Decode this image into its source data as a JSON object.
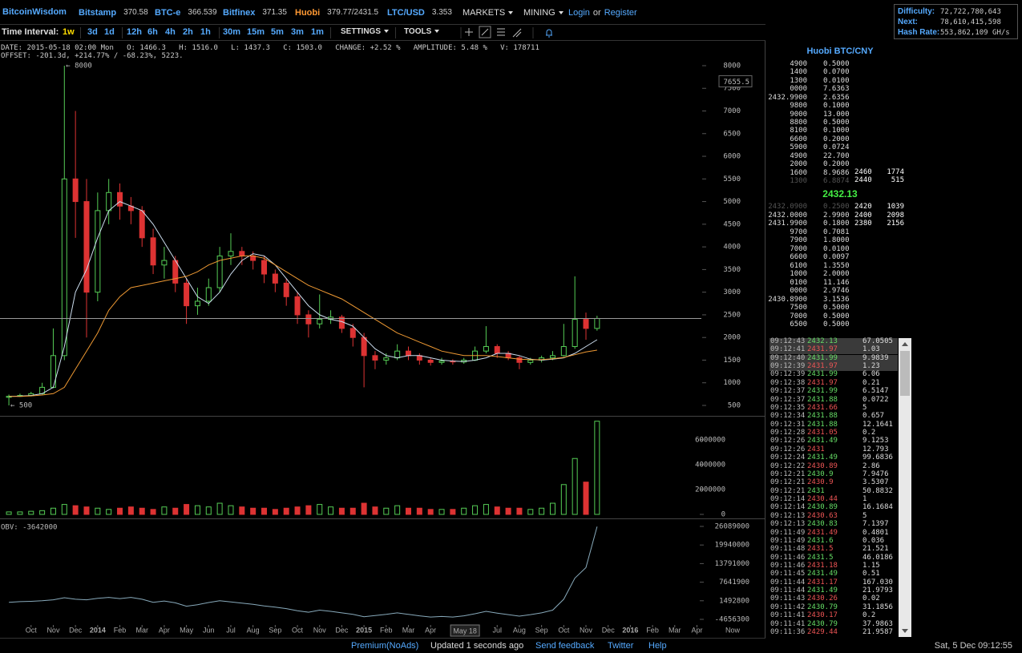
{
  "header": {
    "brand": "BitcoinWisdom",
    "tickers": [
      {
        "name": "Bitstamp",
        "price": "370.58",
        "color": "#5af"
      },
      {
        "name": "BTC-e",
        "price": "366.539",
        "color": "#5af"
      },
      {
        "name": "Bitfinex",
        "price": "371.35",
        "color": "#5af"
      },
      {
        "name": "Huobi",
        "price": "379.77/2431.5",
        "color": "#f93"
      },
      {
        "name": "LTC/USD",
        "price": "3.353",
        "color": "#5af"
      }
    ],
    "menus": [
      "MARKETS",
      "MINING"
    ],
    "login": "Login",
    "or": "or",
    "register": "Register"
  },
  "network": {
    "difficulty_label": "Difficulty:",
    "difficulty": "72,722,780,643",
    "next_label": "Next:",
    "next": "78,610,415,598",
    "hashrate_label": "Hash Rate:",
    "hashrate": "553,862,109 GH/s"
  },
  "toolbar": {
    "label": "Time Interval:",
    "intervals": [
      "1w",
      "3d",
      "1d",
      "12h",
      "6h",
      "4h",
      "2h",
      "1h",
      "30m",
      "15m",
      "5m",
      "3m",
      "1m"
    ],
    "active": 0,
    "settings": "SETTINGS",
    "tools": "TOOLS"
  },
  "info": {
    "line1": "DATE: 2015-05-18 02:00 Mon   O: 1466.3   H: 1516.0   L: 1437.3   C: 1503.0   CHANGE: +2.52 %   AMPLITUDE: 5.48 %   V: 178711",
    "line2": "OFFSET: -201.3d, +214.77% / -68.23%, 5223."
  },
  "chart_data": [
    {
      "type": "candlestick",
      "up_color": "#5c5",
      "down_color": "#d33",
      "x": [
        -1,
        -0.5,
        0,
        0.5,
        1,
        1.5,
        2,
        2.5,
        3,
        3.5,
        4,
        4.5,
        5,
        5.5,
        6,
        6.5,
        7,
        7.5,
        8,
        8.5,
        9,
        9.5,
        10,
        10.5,
        11,
        11.5,
        12,
        12.5,
        13,
        13.5,
        14,
        14.5,
        15,
        15.5,
        16,
        16.5,
        17,
        17.5,
        18,
        18.5,
        19,
        19.5,
        20,
        20.5,
        21,
        21.5,
        22,
        22.5,
        23,
        23.5,
        24,
        24.5,
        25,
        25.5
      ],
      "open": [
        680,
        700,
        720,
        760,
        900,
        1600,
        5500,
        5000,
        3000,
        4800,
        5200,
        4900,
        4800,
        4200,
        3600,
        3700,
        3200,
        2700,
        2800,
        3100,
        3800,
        3900,
        3800,
        3700,
        3400,
        3200,
        2900,
        2500,
        2300,
        2400,
        2450,
        2200,
        2000,
        1600,
        1500,
        1550,
        1700,
        1600,
        1500,
        1450,
        1480,
        1460,
        1500,
        1700,
        1800,
        1650,
        1550,
        1450,
        1500,
        1550,
        1600,
        1800,
        2400,
        2200
      ],
      "high": [
        740,
        760,
        800,
        1000,
        2200,
        8000,
        7000,
        5500,
        5200,
        5500,
        5400,
        5100,
        4900,
        4400,
        4000,
        3800,
        3300,
        3100,
        3300,
        4000,
        4300,
        4000,
        3900,
        3800,
        3500,
        3300,
        3000,
        2600,
        2950,
        2600,
        2500,
        2300,
        2100,
        1700,
        1650,
        1850,
        1800,
        1650,
        1550,
        1550,
        1520,
        1550,
        1800,
        2250,
        1850,
        1700,
        1600,
        1550,
        1600,
        1700,
        2300,
        3350,
        2550,
        2480
      ],
      "low": [
        500,
        690,
        700,
        740,
        880,
        1500,
        4200,
        2000,
        2800,
        4500,
        4600,
        4500,
        4000,
        3400,
        3300,
        3000,
        2300,
        2500,
        2700,
        3000,
        3600,
        3600,
        3500,
        3200,
        3000,
        2700,
        2300,
        2000,
        2200,
        2300,
        2100,
        1800,
        900,
        1300,
        1400,
        1500,
        1500,
        1400,
        1380,
        1400,
        1400,
        1420,
        1480,
        1650,
        1550,
        1500,
        1300,
        1400,
        1450,
        1500,
        1580,
        1750,
        1950,
        2150
      ],
      "close": [
        700,
        720,
        760,
        900,
        1600,
        5500,
        5000,
        3000,
        4800,
        5200,
        4900,
        4800,
        4200,
        3600,
        3700,
        3200,
        2700,
        2800,
        3100,
        3800,
        3900,
        3800,
        3700,
        3400,
        3200,
        2900,
        2500,
        2300,
        2400,
        2450,
        2200,
        2000,
        1600,
        1500,
        1550,
        1700,
        1600,
        1500,
        1450,
        1480,
        1460,
        1500,
        1700,
        1800,
        1650,
        1550,
        1450,
        1500,
        1550,
        1600,
        1800,
        2400,
        2200,
        2420
      ],
      "lines": [
        {
          "color": "#cde",
          "values": [
            700,
            705,
            720,
            760,
            900,
            1800,
            3000,
            3500,
            4200,
            4800,
            5000,
            4900,
            4800,
            4500,
            4100,
            3700,
            3300,
            2900,
            2750,
            3000,
            3400,
            3700,
            3850,
            3800,
            3600,
            3300,
            3000,
            2700,
            2500,
            2400,
            2350,
            2250,
            2000,
            1750,
            1600,
            1550,
            1600,
            1600,
            1550,
            1500,
            1480,
            1470,
            1500,
            1550,
            1650,
            1650,
            1600,
            1520,
            1500,
            1520,
            1550,
            1650,
            1800,
            1950
          ]
        },
        {
          "color": "#e93",
          "values": [
            700,
            700,
            710,
            730,
            760,
            900,
            1300,
            1700,
            2100,
            2600,
            2900,
            3100,
            3150,
            3200,
            3250,
            3300,
            3350,
            3450,
            3600,
            3700,
            3750,
            3800,
            3800,
            3750,
            3600,
            3450,
            3300,
            3150,
            3050,
            2950,
            2850,
            2700,
            2550,
            2400,
            2250,
            2100,
            2000,
            1900,
            1800,
            1700,
            1650,
            1600,
            1600,
            1600,
            1580,
            1550,
            1520,
            1510,
            1510,
            1530,
            1560,
            1620,
            1680,
            1720
          ]
        }
      ],
      "xlim": [
        -1.4,
        30.2
      ],
      "xticks": [
        {
          "value": 0,
          "label": "Oct"
        },
        {
          "value": 1,
          "label": "Nov"
        },
        {
          "value": 2,
          "label": "Dec"
        },
        {
          "value": 3,
          "label": "2014"
        },
        {
          "value": 4,
          "label": "Feb"
        },
        {
          "value": 5,
          "label": "Mar"
        },
        {
          "value": 6,
          "label": "Apr"
        },
        {
          "value": 7,
          "label": "May"
        },
        {
          "value": 8,
          "label": "Jun"
        },
        {
          "value": 9,
          "label": "Jul"
        },
        {
          "value": 10,
          "label": "Aug"
        },
        {
          "value": 11,
          "label": "Sep"
        },
        {
          "value": 12,
          "label": "Oct"
        },
        {
          "value": 13,
          "label": "Nov"
        },
        {
          "value": 14,
          "label": "Dec"
        },
        {
          "value": 15,
          "label": "2015"
        },
        {
          "value": 16,
          "label": "Feb"
        },
        {
          "value": 17,
          "label": "Mar"
        },
        {
          "value": 18,
          "label": "Apr"
        },
        {
          "value": 21,
          "label": "Jul"
        },
        {
          "value": 22,
          "label": "Aug"
        },
        {
          "value": 23,
          "label": "Sep"
        },
        {
          "value": 24,
          "label": "Oct"
        },
        {
          "value": 25,
          "label": "Nov"
        },
        {
          "value": 26,
          "label": "Dec"
        },
        {
          "value": 27,
          "label": "2016"
        },
        {
          "value": 28,
          "label": "Feb"
        },
        {
          "value": 29,
          "label": "Mar"
        },
        {
          "value": 30,
          "label": "Apr"
        }
      ],
      "now_label": "Now",
      "ylim": [
        288,
        8530
      ],
      "yticks": [
        500,
        1000,
        1500,
        2000,
        2500,
        3000,
        3500,
        4000,
        4500,
        5000,
        5500,
        6000,
        6500,
        7000,
        7500,
        8000
      ],
      "high_note": "← 8000",
      "low_note": "← 500",
      "cursor": {
        "x": 19.55,
        "x_label": "May 18",
        "y": 7655.5
      }
    },
    {
      "type": "bar",
      "values": [
        200000,
        200000,
        250000,
        300000,
        500000,
        800000,
        700000,
        600000,
        500000,
        400000,
        500000,
        600000,
        500000,
        400000,
        600000,
        500000,
        800000,
        700000,
        600000,
        900000,
        700000,
        600000,
        500000,
        500000,
        400000,
        500000,
        600000,
        700000,
        800000,
        600000,
        500000,
        500000,
        900000,
        600000,
        500000,
        700000,
        500000,
        500000,
        400000,
        400000,
        400000,
        500000,
        700000,
        800000,
        600000,
        500000,
        500000,
        400000,
        500000,
        900000,
        2400000,
        4500000,
        2600000,
        7500000
      ],
      "ylim": [
        0,
        7740000
      ],
      "yticks": [
        0,
        2000000,
        4000000,
        6000000
      ]
    },
    {
      "type": "line",
      "label": "OBV: -3642000",
      "color": "#8ab",
      "values": [
        1000000,
        1200000,
        1300000,
        1500000,
        1800000,
        2500000,
        2000000,
        1800000,
        2300000,
        2600000,
        2200000,
        2600000,
        2000000,
        1000000,
        1400000,
        800000,
        -300000,
        200000,
        900000,
        1500000,
        1100000,
        700000,
        300000,
        -200000,
        -600000,
        -1100000,
        -1800000,
        -2300000,
        -1600000,
        -2000000,
        -2500000,
        -3000000,
        -3800000,
        -3400000,
        -3000000,
        -2500000,
        -3000000,
        -3500000,
        -3900000,
        -3700000,
        -3900000,
        -3500000,
        -2800000,
        -2000000,
        -2600000,
        -3100000,
        -3600000,
        -3100000,
        -2500000,
        -1600000,
        2000000,
        9000000,
        12500000,
        26000000
      ],
      "ylim": [
        -6511600,
        27944000
      ],
      "yticks": [
        -4656300,
        1492800,
        7641900,
        13791000,
        19940000,
        26089000
      ]
    }
  ],
  "orderbook": {
    "title": "Huobi BTC/CNY",
    "asks": [
      {
        "price": "4900",
        "amount": "0.5000"
      },
      {
        "price": "1400",
        "amount": "0.0700"
      },
      {
        "price": "1300",
        "amount": "0.0100"
      },
      {
        "price": "0000",
        "amount": "7.6363"
      },
      {
        "price": "2432.9900",
        "amount": "2.6356"
      },
      {
        "price": "9800",
        "amount": "0.1000"
      },
      {
        "price": "9000",
        "amount": "13.000"
      },
      {
        "price": "8800",
        "amount": "0.5000"
      },
      {
        "price": "8100",
        "amount": "0.1000"
      },
      {
        "price": "6600",
        "amount": "0.2000"
      },
      {
        "price": "5900",
        "amount": "0.0724"
      },
      {
        "price": "4900",
        "amount": "22.700"
      },
      {
        "price": "2000",
        "amount": "0.2000"
      },
      {
        "price": "1600",
        "amount": "8.9686"
      },
      {
        "price": "1300",
        "amount": "6.8874",
        "dim": true
      }
    ],
    "ask_depth": [
      {
        "price": "2460",
        "amount": "1774"
      },
      {
        "price": "2440",
        "amount": "515"
      }
    ],
    "last": "2432.13",
    "bids": [
      {
        "price": "2432.0900",
        "amount": "0.2500",
        "dim": true
      },
      {
        "price": "2432.0000",
        "amount": "2.9900"
      },
      {
        "price": "2431.9900",
        "amount": "0.1800"
      },
      {
        "price": "9700",
        "amount": "0.7081"
      },
      {
        "price": "7900",
        "amount": "1.8000"
      },
      {
        "price": "7000",
        "amount": "0.0100"
      },
      {
        "price": "6600",
        "amount": "0.0097"
      },
      {
        "price": "6100",
        "amount": "1.3550"
      },
      {
        "price": "1000",
        "amount": "2.0000"
      },
      {
        "price": "0100",
        "amount": "11.146"
      },
      {
        "price": "0000",
        "amount": "2.9746"
      },
      {
        "price": "2430.8900",
        "amount": "3.1536"
      },
      {
        "price": "7500",
        "amount": "0.5000"
      },
      {
        "price": "7000",
        "amount": "0.5000"
      },
      {
        "price": "6500",
        "amount": "0.5000"
      }
    ],
    "bid_depth": [
      {
        "price": "2420",
        "amount": "1039"
      },
      {
        "price": "2400",
        "amount": "2098"
      },
      {
        "price": "2380",
        "amount": "2156"
      }
    ]
  },
  "trades": {
    "highlighted": 4,
    "rows": [
      {
        "time": "09:12:43",
        "price": "2432.13",
        "amount": "67.0505",
        "side": "up"
      },
      {
        "time": "09:12:41",
        "price": "2431.97",
        "amount": "1.03",
        "side": "down"
      },
      {
        "time": "09:12:40",
        "price": "2431.99",
        "amount": "9.9839",
        "side": "up"
      },
      {
        "time": "09:12:39",
        "price": "2431.97",
        "amount": "1.23",
        "side": "down"
      },
      {
        "time": "09:12:39",
        "price": "2431.99",
        "amount": "6.06",
        "side": "up"
      },
      {
        "time": "09:12:38",
        "price": "2431.97",
        "amount": "0.21",
        "side": "down"
      },
      {
        "time": "09:12:37",
        "price": "2431.99",
        "amount": "6.5147",
        "side": "up"
      },
      {
        "time": "09:12:37",
        "price": "2431.88",
        "amount": "0.0722",
        "side": "up"
      },
      {
        "time": "09:12:35",
        "price": "2431.66",
        "amount": "5",
        "side": "down"
      },
      {
        "time": "09:12:34",
        "price": "2431.88",
        "amount": "0.657",
        "side": "up"
      },
      {
        "time": "09:12:31",
        "price": "2431.88",
        "amount": "12.1641",
        "side": "up"
      },
      {
        "time": "09:12:28",
        "price": "2431.05",
        "amount": "0.2",
        "side": "down"
      },
      {
        "time": "09:12:26",
        "price": "2431.49",
        "amount": "9.1253",
        "side": "up"
      },
      {
        "time": "09:12:26",
        "price": "2431",
        "amount": "12.793",
        "side": "down"
      },
      {
        "time": "09:12:24",
        "price": "2431.49",
        "amount": "99.6836",
        "side": "up"
      },
      {
        "time": "09:12:22",
        "price": "2430.89",
        "amount": "2.86",
        "side": "down"
      },
      {
        "time": "09:12:21",
        "price": "2430.9",
        "amount": "7.9476",
        "side": "up"
      },
      {
        "time": "09:12:21",
        "price": "2430.9",
        "amount": "3.5307",
        "side": "down"
      },
      {
        "time": "09:12:21",
        "price": "2431",
        "amount": "50.8832",
        "side": "up"
      },
      {
        "time": "09:12:14",
        "price": "2430.44",
        "amount": "1",
        "side": "down"
      },
      {
        "time": "09:12:14",
        "price": "2430.89",
        "amount": "16.1684",
        "side": "up"
      },
      {
        "time": "09:12:13",
        "price": "2430.63",
        "amount": "5",
        "side": "down"
      },
      {
        "time": "09:12:13",
        "price": "2430.83",
        "amount": "7.1397",
        "side": "up"
      },
      {
        "time": "09:11:49",
        "price": "2431.49",
        "amount": "0.4801",
        "side": "down"
      },
      {
        "time": "09:11:49",
        "price": "2431.6",
        "amount": "0.036",
        "side": "up"
      },
      {
        "time": "09:11:48",
        "price": "2431.5",
        "amount": "21.521",
        "side": "down"
      },
      {
        "time": "09:11:46",
        "price": "2431.5",
        "amount": "46.0186",
        "side": "up"
      },
      {
        "time": "09:11:46",
        "price": "2431.18",
        "amount": "1.15",
        "side": "down"
      },
      {
        "time": "09:11:45",
        "price": "2431.49",
        "amount": "0.51",
        "side": "up"
      },
      {
        "time": "09:11:44",
        "price": "2431.17",
        "amount": "167.030",
        "side": "down"
      },
      {
        "time": "09:11:44",
        "price": "2431.49",
        "amount": "21.9793",
        "side": "up"
      },
      {
        "time": "09:11:43",
        "price": "2430.26",
        "amount": "0.02",
        "side": "down"
      },
      {
        "time": "09:11:42",
        "price": "2430.79",
        "amount": "31.1856",
        "side": "up"
      },
      {
        "time": "09:11:41",
        "price": "2430.17",
        "amount": "0.2",
        "side": "down"
      },
      {
        "time": "09:11:41",
        "price": "2430.79",
        "amount": "37.9863",
        "side": "up"
      },
      {
        "time": "09:11:36",
        "price": "2429.44",
        "amount": "21.9587",
        "side": "down"
      }
    ]
  },
  "footer": {
    "items": [
      {
        "text": "Premium(NoAds)",
        "link": true
      },
      {
        "text": "Updated 1 seconds ago",
        "link": false
      },
      {
        "text": "Send feedback",
        "link": true
      },
      {
        "text": "Twitter",
        "link": true
      },
      {
        "text": "Help",
        "link": true
      }
    ],
    "datetime": "Sat, 5 Dec 09:12:55"
  }
}
